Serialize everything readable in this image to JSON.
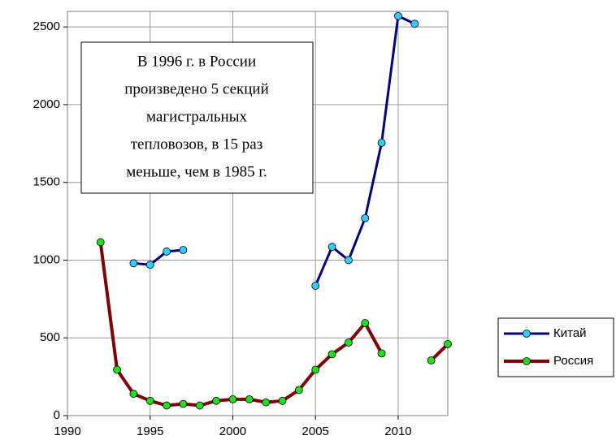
{
  "chart_data": {
    "type": "line",
    "annotation": [
      "В 1996 г. в России",
      "произведено 5 секций",
      "магистральных",
      "тепловозов, в 15 раз",
      "меньше, чем в 1985 г."
    ],
    "x": [
      1992,
      1993,
      1994,
      1995,
      1996,
      1997,
      1998,
      1999,
      2000,
      2001,
      2002,
      2003,
      2004,
      2005,
      2006,
      2007,
      2008,
      2009,
      2010,
      2011,
      2012,
      2013
    ],
    "series": [
      {
        "name": "Китай",
        "color": "#000080",
        "marker_color": "#33ccff",
        "values": [
          null,
          null,
          980,
          970,
          1055,
          1065,
          null,
          null,
          null,
          null,
          null,
          null,
          null,
          835,
          1085,
          1000,
          1270,
          1755,
          2570,
          2520,
          null,
          null
        ]
      },
      {
        "name": "Россия",
        "color": "#800000",
        "marker_color": "#22dd22",
        "values": [
          1115,
          295,
          140,
          95,
          65,
          75,
          65,
          95,
          105,
          105,
          85,
          95,
          165,
          295,
          395,
          470,
          595,
          400,
          null,
          null,
          355,
          460
        ]
      }
    ],
    "xlim": [
      1990,
      2013
    ],
    "xticks": [
      1990,
      1995,
      2000,
      2005,
      2010
    ],
    "ylim": [
      0,
      2600
    ],
    "yticks": [
      0,
      500,
      1000,
      1500,
      2000,
      2500
    ],
    "grid": true,
    "legend": "right"
  }
}
